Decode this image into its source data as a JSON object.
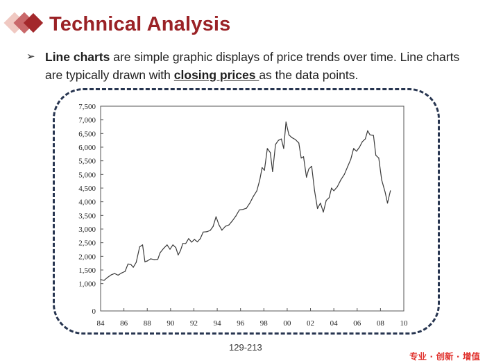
{
  "slide": {
    "title": "Technical Analysis",
    "bullet": {
      "term": "Line charts",
      "text_1": " are simple graphic displays of price trends over time. Line charts are typically drawn with ",
      "emphasis": "closing prices ",
      "text_2": "as the data points."
    },
    "page_number": "129-213",
    "slogan": "专业 · 创新 · 增值"
  },
  "colors": {
    "title": "#9a2226",
    "frame_border": "#273550",
    "slogan": "#e0322d",
    "logo_diamonds": [
      "#a3282b",
      "#c9686a",
      "#f0c9c2"
    ]
  },
  "icons": {
    "logo": "diamond-logo-icon",
    "bullet": "arrow-bullet-icon"
  },
  "chart_data": {
    "type": "line",
    "title": "",
    "xlabel": "",
    "ylabel": "",
    "xlim": [
      1984,
      2010
    ],
    "ylim": [
      0,
      7500
    ],
    "x_ticks": [
      1984,
      1986,
      1988,
      1990,
      1992,
      1994,
      1996,
      1998,
      2000,
      2002,
      2004,
      2006,
      2008,
      2010
    ],
    "x_tick_labels": [
      "84",
      "86",
      "88",
      "90",
      "92",
      "94",
      "96",
      "98",
      "00",
      "02",
      "04",
      "06",
      "08",
      "10"
    ],
    "y_ticks": [
      0,
      1000,
      1500,
      2000,
      2500,
      3000,
      3500,
      4000,
      4500,
      5000,
      5500,
      6000,
      6500,
      7000,
      7500
    ],
    "y_tick_labels": [
      "0",
      "1,000",
      "1,500",
      "2,000",
      "2,500",
      "3,000",
      "3,500",
      "4,000",
      "4,500",
      "5,000",
      "5,500",
      "6,000",
      "6,500",
      "7,000",
      "7,500"
    ],
    "grid": false,
    "legend": "none",
    "series": [
      {
        "points": [
          [
            1984.0,
            1150
          ],
          [
            1984.3,
            1120
          ],
          [
            1984.6,
            1230
          ],
          [
            1984.9,
            1320
          ],
          [
            1985.2,
            1370
          ],
          [
            1985.5,
            1310
          ],
          [
            1985.8,
            1390
          ],
          [
            1986.1,
            1450
          ],
          [
            1986.35,
            1720
          ],
          [
            1986.6,
            1700
          ],
          [
            1986.8,
            1600
          ],
          [
            1987.05,
            1780
          ],
          [
            1987.35,
            2350
          ],
          [
            1987.6,
            2420
          ],
          [
            1987.8,
            1800
          ],
          [
            1988.0,
            1830
          ],
          [
            1988.3,
            1910
          ],
          [
            1988.6,
            1880
          ],
          [
            1988.9,
            1890
          ],
          [
            1989.1,
            2130
          ],
          [
            1989.4,
            2290
          ],
          [
            1989.7,
            2420
          ],
          [
            1989.95,
            2260
          ],
          [
            1990.2,
            2420
          ],
          [
            1990.45,
            2320
          ],
          [
            1990.65,
            2050
          ],
          [
            1990.85,
            2210
          ],
          [
            1991.05,
            2470
          ],
          [
            1991.3,
            2470
          ],
          [
            1991.55,
            2650
          ],
          [
            1991.8,
            2520
          ],
          [
            1992.05,
            2620
          ],
          [
            1992.3,
            2530
          ],
          [
            1992.55,
            2650
          ],
          [
            1992.8,
            2890
          ],
          [
            1993.1,
            2900
          ],
          [
            1993.4,
            2950
          ],
          [
            1993.65,
            3100
          ],
          [
            1993.9,
            3450
          ],
          [
            1994.15,
            3150
          ],
          [
            1994.4,
            2960
          ],
          [
            1994.7,
            3100
          ],
          [
            1995.0,
            3150
          ],
          [
            1995.3,
            3300
          ],
          [
            1995.6,
            3480
          ],
          [
            1995.9,
            3700
          ],
          [
            1996.2,
            3720
          ],
          [
            1996.5,
            3760
          ],
          [
            1996.8,
            3950
          ],
          [
            1997.1,
            4200
          ],
          [
            1997.4,
            4400
          ],
          [
            1997.65,
            4800
          ],
          [
            1997.85,
            5250
          ],
          [
            1998.05,
            5150
          ],
          [
            1998.3,
            5950
          ],
          [
            1998.55,
            5800
          ],
          [
            1998.75,
            5100
          ],
          [
            1999.0,
            6100
          ],
          [
            1999.25,
            6250
          ],
          [
            1999.5,
            6300
          ],
          [
            1999.7,
            5950
          ],
          [
            1999.9,
            6920
          ],
          [
            2000.15,
            6450
          ],
          [
            2000.4,
            6350
          ],
          [
            2000.7,
            6280
          ],
          [
            2001.0,
            6150
          ],
          [
            2001.2,
            5600
          ],
          [
            2001.4,
            5650
          ],
          [
            2001.65,
            4900
          ],
          [
            2001.85,
            5200
          ],
          [
            2002.1,
            5300
          ],
          [
            2002.35,
            4400
          ],
          [
            2002.6,
            3750
          ],
          [
            2002.85,
            3950
          ],
          [
            2003.1,
            3620
          ],
          [
            2003.35,
            4050
          ],
          [
            2003.6,
            4150
          ],
          [
            2003.8,
            4500
          ],
          [
            2004.0,
            4400
          ],
          [
            2004.3,
            4550
          ],
          [
            2004.6,
            4800
          ],
          [
            2004.9,
            5000
          ],
          [
            2005.2,
            5300
          ],
          [
            2005.45,
            5550
          ],
          [
            2005.7,
            5950
          ],
          [
            2005.95,
            5850
          ],
          [
            2006.2,
            6000
          ],
          [
            2006.45,
            6200
          ],
          [
            2006.7,
            6300
          ],
          [
            2006.9,
            6600
          ],
          [
            2007.1,
            6450
          ],
          [
            2007.4,
            6430
          ],
          [
            2007.6,
            5700
          ],
          [
            2007.85,
            5600
          ],
          [
            2008.1,
            4800
          ],
          [
            2008.4,
            4350
          ],
          [
            2008.6,
            3950
          ],
          [
            2008.85,
            4400
          ]
        ]
      }
    ]
  }
}
